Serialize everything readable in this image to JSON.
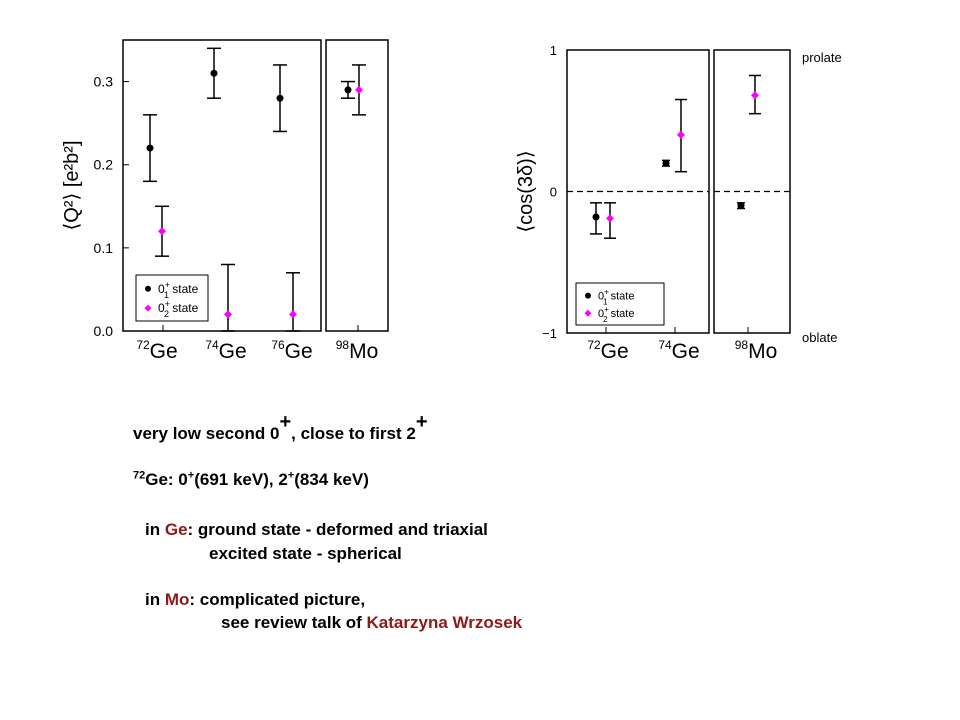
{
  "colors": {
    "state1": "#000000",
    "state2": "#ff00ff",
    "highlight": "#8b1a1a"
  },
  "chart_data": [
    {
      "type": "scatter",
      "ylabel": "⟨Q²⟩ [e²b²]",
      "ylim": [
        0.0,
        0.35
      ],
      "yticks": [
        "0.0",
        "0.1",
        "0.2",
        "0.3"
      ],
      "categories": [
        "72Ge",
        "74Ge",
        "76Ge",
        "98Mo"
      ],
      "category_labels": [
        {
          "mass": "72",
          "el": "Ge"
        },
        {
          "mass": "74",
          "el": "Ge"
        },
        {
          "mass": "76",
          "el": "Ge"
        },
        {
          "mass": "98",
          "el": "Mo"
        }
      ],
      "legend": {
        "position": "bottom-left",
        "entries": [
          {
            "sub": "1",
            "label": "state"
          },
          {
            "sub": "2",
            "label": "state"
          }
        ]
      },
      "series": [
        {
          "name": "0₁⁺ state",
          "color": "#000000",
          "values": [
            0.22,
            0.31,
            0.28,
            0.29
          ],
          "err_low": [
            0.18,
            0.28,
            0.24,
            0.28
          ],
          "err_high": [
            0.26,
            0.34,
            0.32,
            0.3
          ]
        },
        {
          "name": "0₂⁺ state",
          "color": "#ff00ff",
          "values": [
            0.12,
            0.02,
            0.02,
            0.29
          ],
          "err_low": [
            0.09,
            0.0,
            0.0,
            0.26
          ],
          "err_high": [
            0.15,
            0.08,
            0.07,
            0.32
          ]
        }
      ]
    },
    {
      "type": "scatter",
      "ylabel": "⟨cos(3δ)⟩",
      "ylim": [
        -1,
        1
      ],
      "yticks": [
        "−1",
        "0",
        "1"
      ],
      "right_labels": {
        "top": "prolate",
        "bottom": "oblate"
      },
      "categories": [
        "72Ge",
        "74Ge",
        "98Mo"
      ],
      "category_labels": [
        {
          "mass": "72",
          "el": "Ge"
        },
        {
          "mass": "74",
          "el": "Ge"
        },
        {
          "mass": "98",
          "el": "Mo"
        }
      ],
      "legend": {
        "position": "bottom-left",
        "entries": [
          {
            "sub": "1",
            "label": "state"
          },
          {
            "sub": "2",
            "label": "state"
          }
        ]
      },
      "series": [
        {
          "name": "0₁⁺ state",
          "color": "#000000",
          "values": [
            -0.18,
            0.2,
            -0.1
          ],
          "err_low": [
            -0.3,
            0.18,
            -0.12
          ],
          "err_high": [
            -0.08,
            0.22,
            -0.08
          ]
        },
        {
          "name": "0₂⁺ state",
          "color": "#ff00ff",
          "values": [
            -0.19,
            0.4,
            0.68
          ],
          "err_low": [
            -0.33,
            0.14,
            0.55
          ],
          "err_high": [
            -0.08,
            0.65,
            0.82
          ]
        }
      ]
    }
  ],
  "text": {
    "line1_a": "very low second 0",
    "line1_b": ", close to first 2",
    "line1_sup": "+",
    "line2_mass": "72",
    "line2_a": "Ge:  0",
    "line2_b": "(691 keV),  2",
    "line2_c": "(834 keV)",
    "line2_sup": "+",
    "ge_prefix": "in ",
    "ge_word": "Ge",
    "ge_rest": ": ground state  -   deformed and triaxial",
    "ge_line2": "excited state  -  spherical",
    "mo_prefix": "in ",
    "mo_word": "Mo",
    "mo_rest": ":  complicated picture,",
    "mo_line2_a": "see review talk of ",
    "mo_line2_name": "Katarzyna Wrzosek"
  }
}
